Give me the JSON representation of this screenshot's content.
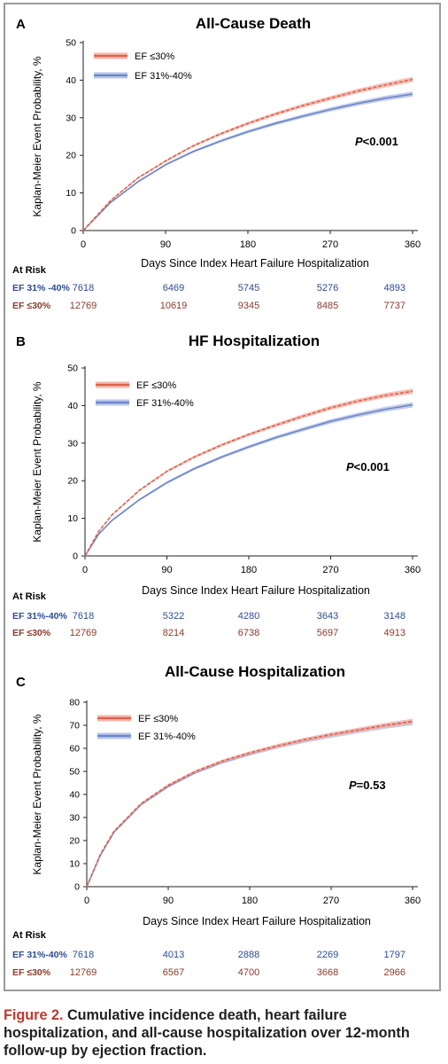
{
  "colors": {
    "ef30": "#e0604f",
    "ef30_band": "#f3b6aa",
    "ef31_40": "#6c86c8",
    "ef31_40_band": "#b9c5ea",
    "ef30_text": "#8b3a2a",
    "ef31_40_text": "#2c4d8f",
    "caption_label": "#c0392b"
  },
  "chart_data": [
    {
      "type": "line",
      "panel_label": "A",
      "title": "All-Cause Death",
      "ylabel": "Kaplan-Meier Event Probability, %",
      "xlabel": "Days Since Index Heart Failure Hospitalization",
      "xlim": [
        0,
        360
      ],
      "ylim": [
        0,
        50
      ],
      "xticks": [
        0,
        90,
        180,
        270,
        360
      ],
      "yticks": [
        0,
        10,
        20,
        30,
        40,
        50
      ],
      "legend_position": "top-left",
      "p_value": {
        "label": "P",
        "text": "<0.001"
      },
      "series": [
        {
          "name": "EF ≤30%",
          "x": [
            0,
            30,
            60,
            90,
            120,
            150,
            180,
            210,
            240,
            270,
            300,
            330,
            360
          ],
          "y": [
            0,
            8,
            14,
            18.5,
            22.5,
            25.7,
            28.5,
            31,
            33.2,
            35.2,
            37.1,
            38.7,
            40.2
          ]
        },
        {
          "name": "EF 31%-40%",
          "x": [
            0,
            30,
            60,
            90,
            120,
            150,
            180,
            210,
            240,
            270,
            300,
            330,
            360
          ],
          "y": [
            0,
            7.5,
            13,
            17.5,
            21,
            23.8,
            26.3,
            28.5,
            30.4,
            32.2,
            33.8,
            35.2,
            36.3
          ]
        }
      ],
      "at_risk": {
        "label": "At Risk",
        "rows": [
          {
            "name": "EF 31% -40%",
            "values": [
              "7618",
              "6469",
              "5745",
              "5276",
              "4893"
            ]
          },
          {
            "name": "EF ≤30%",
            "values": [
              "12769",
              "10619",
              "9345",
              "8485",
              "7737"
            ]
          }
        ]
      }
    },
    {
      "type": "line",
      "panel_label": "B",
      "title": "HF Hospitalization",
      "ylabel": "Kaplan-Meier Event Probability, %",
      "xlabel": "Days Since Index Heart Failure Hospitalization",
      "xlim": [
        0,
        360
      ],
      "ylim": [
        0,
        50
      ],
      "xticks": [
        0,
        90,
        180,
        270,
        360
      ],
      "yticks": [
        0,
        10,
        20,
        30,
        40,
        50
      ],
      "legend_position": "top-left",
      "p_value": {
        "label": "P",
        "text": "<0.001"
      },
      "series": [
        {
          "name": "EF ≤30%",
          "x": [
            0,
            15,
            30,
            60,
            90,
            120,
            150,
            180,
            210,
            240,
            270,
            300,
            330,
            360
          ],
          "y": [
            0,
            6.5,
            11,
            17.5,
            22.5,
            26.3,
            29.5,
            32.3,
            34.8,
            37.2,
            39.4,
            41.2,
            42.7,
            43.8
          ]
        },
        {
          "name": "EF 31%-40%",
          "x": [
            0,
            15,
            30,
            60,
            90,
            120,
            150,
            180,
            210,
            240,
            270,
            300,
            330,
            360
          ],
          "y": [
            0,
            5.8,
            9.5,
            15,
            19.5,
            23.2,
            26.3,
            29,
            31.5,
            33.7,
            35.8,
            37.5,
            39,
            40.2
          ]
        }
      ],
      "at_risk": {
        "label": "At Risk",
        "rows": [
          {
            "name": "EF 31%-40%",
            "values": [
              "7618",
              "5322",
              "4280",
              "3643",
              "3148"
            ]
          },
          {
            "name": "EF ≤30%",
            "values": [
              "12769",
              "8214",
              "6738",
              "5697",
              "4913"
            ]
          }
        ]
      }
    },
    {
      "type": "line",
      "panel_label": "C",
      "title": "All-Cause Hospitalization",
      "ylabel": "Kaplan-Meier Event Probability, %",
      "xlabel": "Days Since Index Heart Failure Hospitalization",
      "xlim": [
        0,
        360
      ],
      "ylim": [
        0,
        80
      ],
      "xticks": [
        0,
        90,
        180,
        270,
        360
      ],
      "yticks": [
        0,
        10,
        20,
        30,
        40,
        50,
        60,
        70,
        80
      ],
      "legend_position": "top-left",
      "p_value": {
        "label": "P",
        "text": "=0.53"
      },
      "series": [
        {
          "name": "EF ≤30%",
          "x": [
            0,
            15,
            30,
            60,
            90,
            120,
            150,
            180,
            210,
            240,
            270,
            300,
            330,
            360
          ],
          "y": [
            0,
            14,
            24,
            36,
            44,
            50,
            54.5,
            58,
            61,
            63.7,
            66,
            68,
            70,
            71.7
          ]
        },
        {
          "name": "EF 31%-40%",
          "x": [
            0,
            15,
            30,
            60,
            90,
            120,
            150,
            180,
            210,
            240,
            270,
            300,
            330,
            360
          ],
          "y": [
            0,
            13.6,
            23.6,
            35.6,
            43.5,
            49.5,
            54,
            57.5,
            60.6,
            63.2,
            65.5,
            67.6,
            69.6,
            71.2
          ]
        }
      ],
      "at_risk": {
        "label": "At Risk",
        "rows": [
          {
            "name": "EF 31%-40%",
            "values": [
              "7618",
              "4013",
              "2888",
              "2269",
              "1797"
            ]
          },
          {
            "name": "EF ≤30%",
            "values": [
              "12769",
              "6567",
              "4700",
              "3668",
              "2966"
            ]
          }
        ]
      }
    }
  ],
  "caption": {
    "label": "Figure 2.",
    "text": "Cumulative incidence death, heart failure hospitalization, and all-cause hospitalization over 12-month follow-up by ejection fraction."
  }
}
